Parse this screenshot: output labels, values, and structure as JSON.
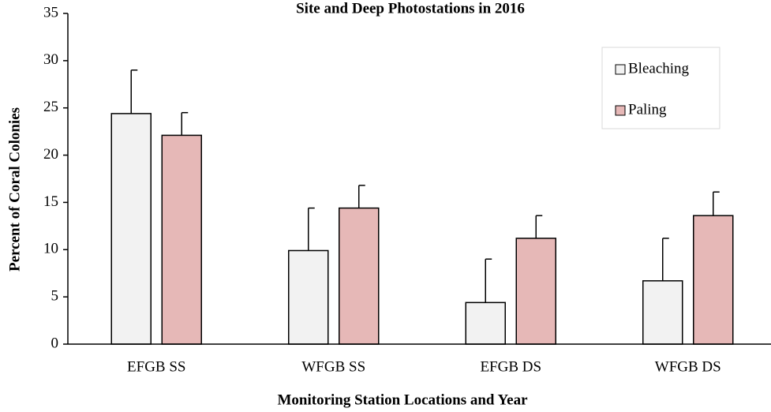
{
  "chart_data": {
    "type": "bar",
    "title": "Site and Deep Photostations in 2016",
    "x_label": "Monitoring  Station Locations and Year",
    "y_label": "Percent of Coral Colonies",
    "categories": [
      "EFGB SS",
      "WFGB SS",
      "EFGB DS",
      "WFGB DS"
    ],
    "series": [
      {
        "name": "Bleaching",
        "color": "#f2f2f2",
        "values": [
          24.4,
          9.9,
          4.4,
          6.7
        ],
        "errors": [
          4.6,
          4.5,
          4.6,
          4.5
        ]
      },
      {
        "name": "Paling",
        "color": "#e6b8b7",
        "values": [
          22.1,
          14.4,
          11.2,
          13.6
        ],
        "errors": [
          2.4,
          2.4,
          2.4,
          2.5
        ]
      }
    ],
    "ylim": [
      0,
      35
    ],
    "yticks": [
      0,
      5,
      10,
      15,
      20,
      25,
      30,
      35
    ],
    "grid": false,
    "legend": "upper right"
  }
}
